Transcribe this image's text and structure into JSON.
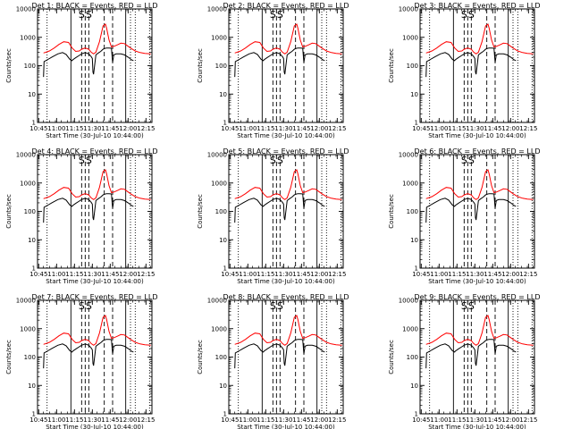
{
  "chart_data": {
    "type": "line",
    "layout": "3x3 grid",
    "xlabel": "Start Time (30-Jul-10 10:44:00)",
    "ylabel": "Counts/sec",
    "yscale": "log",
    "ylim": [
      1,
      10000
    ],
    "xlim_minutes": [
      0,
      96
    ],
    "x_tick_labels": [
      "10:45",
      "11:00",
      "11:15",
      "11:30",
      "11:45",
      "12:00",
      "12:15"
    ],
    "x_tick_minutes": [
      1,
      16,
      31,
      46,
      61,
      76,
      91
    ],
    "y_tick_labels": [
      "1",
      "10",
      "100",
      "1000",
      "10000"
    ],
    "y_tick_values": [
      1,
      10,
      100,
      1000,
      10000
    ],
    "colors": {
      "events": "#000000",
      "lld": "#ff0000",
      "frame": "#000000"
    },
    "markers": [
      {
        "minute": 8,
        "style": "dotted"
      },
      {
        "minute": 28,
        "style": "solid"
      },
      {
        "minute": 37,
        "style": "dashed",
        "label": "S"
      },
      {
        "minute": 40,
        "style": "dashed"
      },
      {
        "minute": 43,
        "style": "dashed",
        "label": "S"
      },
      {
        "minute": 56,
        "style": "dashed"
      },
      {
        "minute": 63,
        "style": "dashed"
      },
      {
        "minute": 74,
        "style": "solid"
      },
      {
        "minute": 78,
        "style": "dotted"
      },
      {
        "minute": 82,
        "style": "dotted"
      },
      {
        "minute": 94,
        "style": "dotted"
      }
    ],
    "series": [
      {
        "color": "red",
        "x": [
          5,
          10,
          14,
          18,
          22,
          26,
          29,
          32,
          35,
          37,
          40,
          43,
          45,
          47,
          49,
          52,
          55,
          57,
          58,
          60,
          62,
          64,
          67,
          70,
          73,
          75,
          78,
          82,
          86,
          90,
          95
        ],
        "y": [
          280,
          330,
          420,
          560,
          700,
          660,
          420,
          320,
          330,
          380,
          420,
          380,
          300,
          260,
          300,
          700,
          2500,
          2900,
          2100,
          800,
          460,
          480,
          540,
          620,
          600,
          520,
          420,
          330,
          290,
          270,
          260
        ]
      },
      {
        "color": "black",
        "x": [
          5,
          5.5,
          8,
          12,
          17,
          21,
          24,
          27,
          29,
          29.5,
          32,
          35,
          37,
          40,
          43,
          45,
          46,
          46.5,
          47,
          49,
          51,
          53,
          55,
          56,
          58,
          60,
          62,
          63,
          64,
          66,
          70,
          73,
          76,
          79,
          80.5
        ],
        "y": [
          40,
          140,
          160,
          200,
          260,
          290,
          250,
          170,
          150,
          160,
          190,
          230,
          260,
          290,
          260,
          210,
          180,
          60,
          50,
          240,
          280,
          320,
          380,
          400,
          420,
          420,
          410,
          130,
          240,
          260,
          260,
          240,
          200,
          160,
          150
        ]
      }
    ],
    "panels": [
      {
        "title": "Det 1: BLACK = Events, RED = LLD"
      },
      {
        "title": "Det 2: BLACK = Events, RED = LLD"
      },
      {
        "title": "Det 3: BLACK = Events, RED = LLD"
      },
      {
        "title": "Det 4: BLACK = Events, RED = LLD"
      },
      {
        "title": "Det 5: BLACK = Events, RED = LLD"
      },
      {
        "title": "Det 6: BLACK = Events, RED = LLD"
      },
      {
        "title": "Det 7: BLACK = Events, RED = LLD"
      },
      {
        "title": "Det 8: BLACK = Events, RED = LLD"
      },
      {
        "title": "Det 9: BLACK = Events, RED = LLD"
      }
    ]
  }
}
